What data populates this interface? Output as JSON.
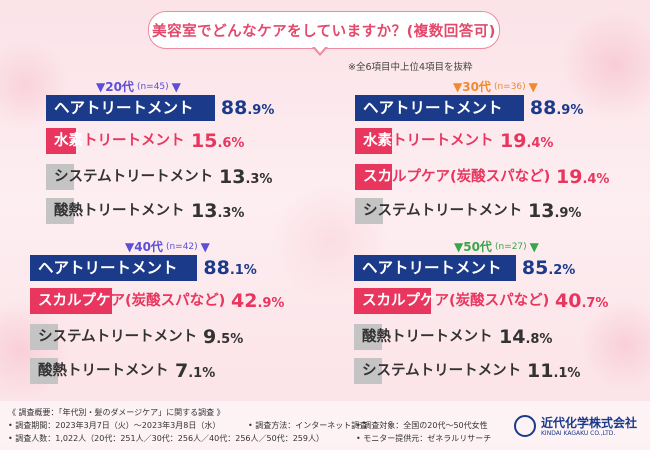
{
  "title": "美容室でどんなケアをしていますか？(複数回答可)",
  "note": "※全6項目中上位4項目を抜粋",
  "colors": {
    "navy": "#1b3a8a",
    "pink": "#e8365f",
    "grey": "#c4c4c4",
    "title": "#e4486b"
  },
  "chart_data": [
    {
      "type": "bar",
      "group": "20代",
      "n": "(n=45)",
      "header_color": "#5a4fd6",
      "categories": [
        "ヘアトリートメント",
        "水素トリートメント",
        "システムトリートメント",
        "酸熱トリートメント"
      ],
      "values": [
        88.9,
        15.6,
        13.3,
        13.3
      ],
      "value_int": [
        "88",
        "15",
        "13",
        "13"
      ],
      "value_dec": [
        ".9%",
        ".6%",
        ".3%",
        ".3%"
      ],
      "styles": [
        "navy",
        "pink",
        "grey",
        "grey"
      ],
      "unit": "%"
    },
    {
      "type": "bar",
      "group": "30代",
      "n": "(n=36)",
      "header_color": "#f08a2a",
      "categories": [
        "ヘアトリートメント",
        "水素トリートメント",
        "スカルプケア(炭酸スパなど)",
        "システムトリートメント"
      ],
      "values": [
        88.9,
        19.4,
        19.4,
        13.9
      ],
      "value_int": [
        "88",
        "19",
        "19",
        "13"
      ],
      "value_dec": [
        ".9%",
        ".4%",
        ".4%",
        ".9%"
      ],
      "styles": [
        "navy",
        "pink",
        "pink",
        "grey"
      ],
      "unit": "%"
    },
    {
      "type": "bar",
      "group": "40代",
      "n": "(n=42)",
      "header_color": "#5a4fd6",
      "categories": [
        "ヘアトリートメント",
        "スカルプケア(炭酸スパなど)",
        "システムトリートメント",
        "酸熱トリートメント"
      ],
      "values": [
        88.1,
        42.9,
        9.5,
        7.1
      ],
      "value_int": [
        "88",
        "42",
        "9",
        "7"
      ],
      "value_dec": [
        ".1%",
        ".9%",
        ".5%",
        ".1%"
      ],
      "styles": [
        "navy",
        "pink",
        "grey",
        "grey"
      ],
      "unit": "%"
    },
    {
      "type": "bar",
      "group": "50代",
      "n": "(n=27)",
      "header_color": "#3aa64a",
      "categories": [
        "ヘアトリートメント",
        "スカルプケア(炭酸スパなど)",
        "酸熱トリートメント",
        "システムトリートメント"
      ],
      "values": [
        85.2,
        40.7,
        14.8,
        11.1
      ],
      "value_int": [
        "85",
        "40",
        "14",
        "11"
      ],
      "value_dec": [
        ".2%",
        ".7%",
        ".8%",
        ".1%"
      ],
      "styles": [
        "navy",
        "pink",
        "grey",
        "grey"
      ],
      "unit": "%"
    }
  ],
  "footer": {
    "line1": "《 調査概要：「年代別・髪のダメージケア」に関する調査 》",
    "line2a": "• 調査期間：2023年3月7日（火）～2023年3月8日（水）",
    "line2b": "• 調査方法：インターネット調査",
    "line2c": "• 調査対象：全国の20代～50代女性",
    "line3a": "• 調査人数：1,022人（20代：251人／30代：256人／40代：256人／50代：259人）",
    "line3b": "• モニター提供元：ゼネラルリサーチ"
  },
  "logo": {
    "name": "近代化学株式会社",
    "sub": "KINDAI KAGAKU CO.,LTD."
  }
}
